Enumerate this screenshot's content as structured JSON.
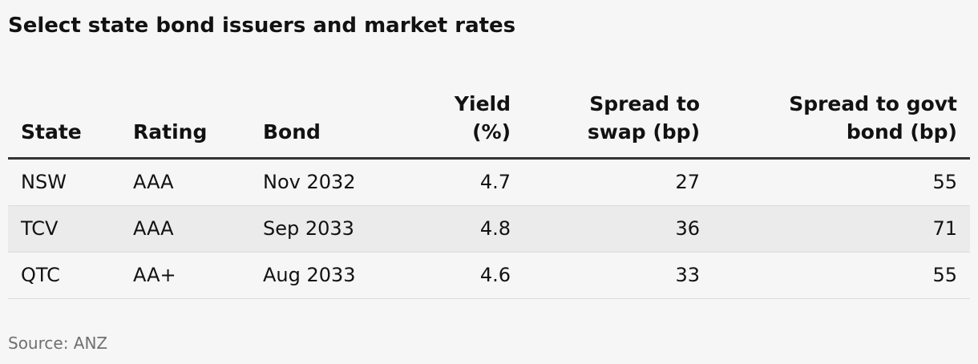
{
  "title": "Select state bond issuers and market rates",
  "source": "Source: ANZ",
  "chart_data": {
    "type": "table",
    "columns": [
      {
        "key": "state",
        "label_line1": "",
        "label_line2": "State"
      },
      {
        "key": "rating",
        "label_line1": "",
        "label_line2": "Rating"
      },
      {
        "key": "bond",
        "label_line1": "",
        "label_line2": "Bond"
      },
      {
        "key": "yield",
        "label_line1": "Yield",
        "label_line2": "(%)"
      },
      {
        "key": "swap",
        "label_line1": "Spread to",
        "label_line2": "swap (bp)"
      },
      {
        "key": "govt",
        "label_line1": "Spread to govt",
        "label_line2": "bond (bp)"
      }
    ],
    "rows": [
      {
        "state": "NSW",
        "rating": "AAA",
        "bond": "Nov 2032",
        "yield": "4.7",
        "swap": "27",
        "govt": "55"
      },
      {
        "state": "TCV",
        "rating": "AAA",
        "bond": "Sep 2033",
        "yield": "4.8",
        "swap": "36",
        "govt": "71"
      },
      {
        "state": "QTC",
        "rating": "AA+",
        "bond": "Aug 2033",
        "yield": "4.6",
        "swap": "33",
        "govt": "55"
      }
    ]
  }
}
